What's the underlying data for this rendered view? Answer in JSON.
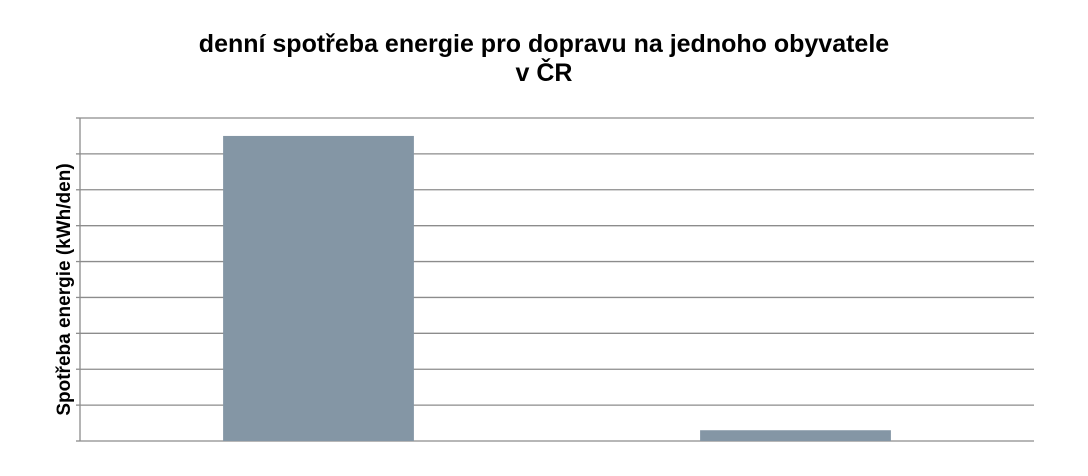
{
  "chart_data": {
    "type": "bar",
    "title_lines": [
      "denní spotřeba energie pro dopravu na jednoho obyvatele",
      "v ČR"
    ],
    "xlabel": "",
    "ylabel": "Spotřeba energie (kWh/den)",
    "categories": [
      "",
      ""
    ],
    "values": [
      8.5,
      0.3
    ],
    "ylim": [
      0,
      9
    ],
    "grid": true,
    "colors": {
      "bar": "#8496a5",
      "grid": "#8c8c8c",
      "axis": "#8c8c8c"
    }
  }
}
